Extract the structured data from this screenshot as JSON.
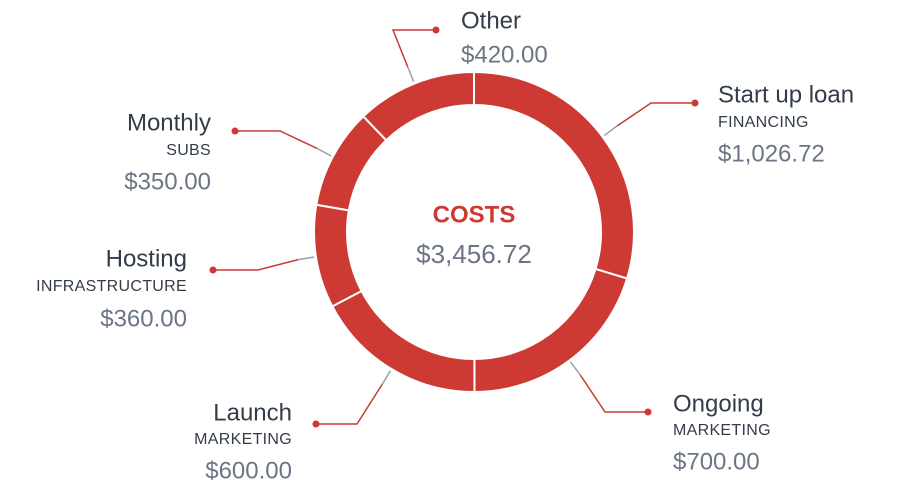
{
  "chart_data": {
    "type": "donut",
    "center_title": "COSTS",
    "total": {
      "value": 3456.72,
      "label": "$3,456.72"
    },
    "categories": [
      "Start up loan",
      "Ongoing",
      "Launch",
      "Hosting",
      "Monthly",
      "Other"
    ],
    "subtitles": [
      "FINANCING",
      "MARKETING",
      "MARKETING",
      "INFRASTRUCTURE",
      "SUBS",
      null
    ],
    "values": [
      1026.72,
      700,
      600,
      360,
      350,
      420
    ],
    "value_labels": [
      "$1,026.72",
      "$700.00",
      "$600.00",
      "$360.00",
      "$350.00",
      "$420.00"
    ],
    "color": "#cc3a33"
  }
}
